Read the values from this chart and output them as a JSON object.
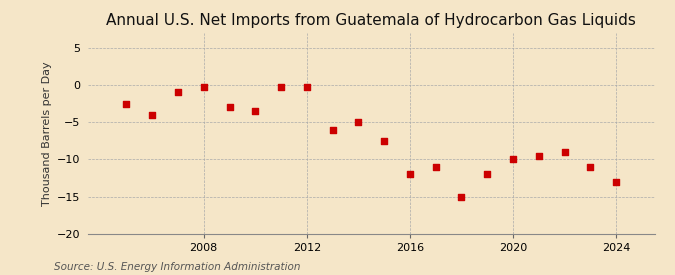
{
  "title": "Annual U.S. Net Imports from Guatemala of Hydrocarbon Gas Liquids",
  "ylabel": "Thousand Barrels per Day",
  "source": "Source: U.S. Energy Information Administration",
  "background_color": "#f5e6c8",
  "years": [
    2005,
    2006,
    2007,
    2008,
    2009,
    2010,
    2011,
    2012,
    2013,
    2014,
    2015,
    2016,
    2017,
    2018,
    2019,
    2020,
    2021,
    2022,
    2023,
    2024
  ],
  "values": [
    -2.5,
    -4.0,
    -1.0,
    -0.2,
    -3.0,
    -3.5,
    -0.2,
    -0.2,
    -6.0,
    -5.0,
    -7.5,
    -12.0,
    -11.0,
    -15.0,
    -12.0,
    -10.0,
    -9.5,
    -9.0,
    -11.0,
    -13.0
  ],
  "marker_color": "#cc0000",
  "marker_size": 18,
  "ylim": [
    -20,
    7
  ],
  "yticks": [
    -20,
    -15,
    -10,
    -5,
    0,
    5
  ],
  "xticks": [
    2008,
    2012,
    2016,
    2020,
    2024
  ],
  "grid_color": "#aaaaaa",
  "title_fontsize": 11,
  "label_fontsize": 8,
  "tick_fontsize": 8,
  "source_fontsize": 7.5
}
